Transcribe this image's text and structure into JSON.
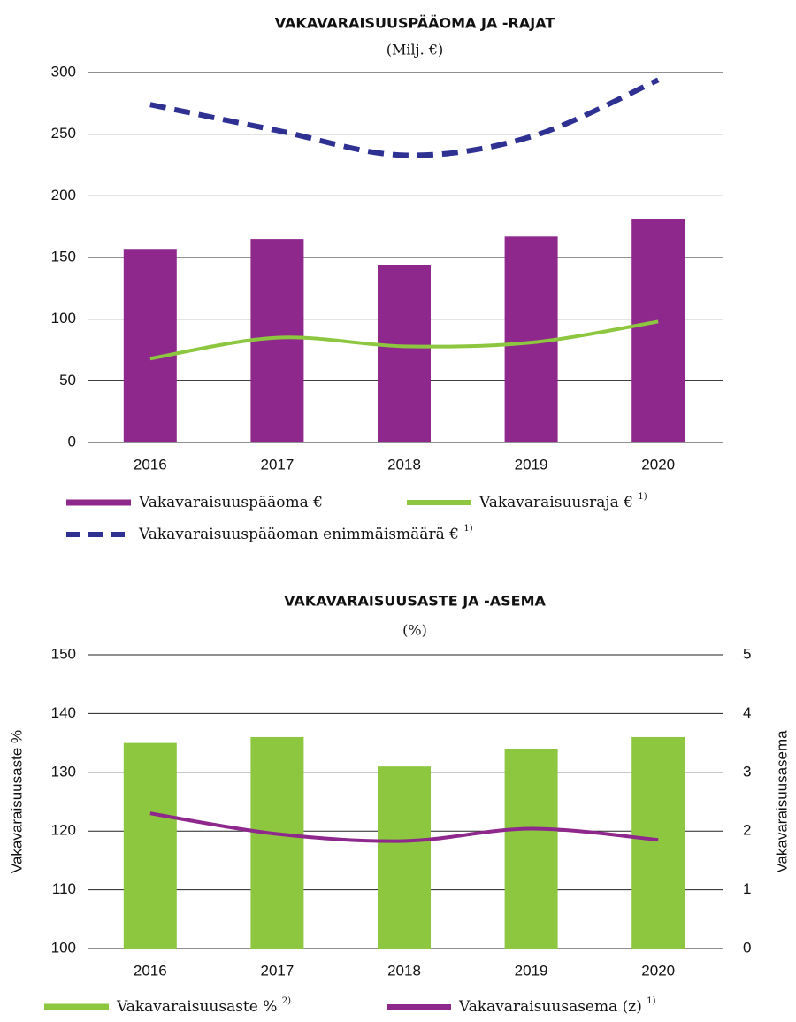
{
  "chart_data": [
    {
      "type": "bar",
      "title": "VAKAVARAISUUSPÄÄOMA JA -RAJAT",
      "subtitle": "(Milj. €)",
      "categories": [
        "2016",
        "2017",
        "2018",
        "2019",
        "2020"
      ],
      "ylim": [
        0,
        300
      ],
      "yticks": [
        0,
        50,
        100,
        150,
        200,
        250,
        300
      ],
      "grid": true,
      "series": [
        {
          "name": "Vakavaraisuuspääoma €",
          "color": "#8e288c",
          "style": "bar",
          "values": [
            157,
            165,
            144,
            167,
            181
          ]
        },
        {
          "name": "Vakavaraisuusraja €",
          "note": "1)",
          "color": "#8dc63f",
          "style": "line",
          "values": [
            68,
            85,
            78,
            81,
            98
          ]
        },
        {
          "name": "Vakavaraisuuspääoman enimmäismäärä  €",
          "note": "1)",
          "color": "#2e3192",
          "style": "line",
          "dashed": true,
          "values": [
            274,
            253,
            233,
            248,
            294
          ]
        }
      ]
    },
    {
      "type": "bar",
      "title": "VAKAVARAISUUSASTE JA -ASEMA",
      "subtitle": "(%)",
      "categories": [
        "2016",
        "2017",
        "2018",
        "2019",
        "2020"
      ],
      "ylabel": "Vakavaraisuusaste %",
      "y2label": "Vakavaraisuusasema",
      "ylim": [
        100,
        150
      ],
      "yticks": [
        100,
        110,
        120,
        130,
        140,
        150
      ],
      "y2lim": [
        0,
        5
      ],
      "y2ticks": [
        0,
        1,
        2,
        3,
        4,
        5
      ],
      "grid": true,
      "series": [
        {
          "name": "Vakavaraisuusaste %",
          "note": "2)",
          "color": "#8dc63f",
          "style": "bar",
          "values": [
            135,
            136,
            131,
            134,
            136
          ]
        },
        {
          "name": "Vakavaraisuusasema (z)",
          "note": "1)",
          "color": "#8e288c",
          "style": "line",
          "axis": "y2",
          "values": [
            2.3,
            1.95,
            1.83,
            2.04,
            1.85
          ]
        }
      ]
    }
  ]
}
